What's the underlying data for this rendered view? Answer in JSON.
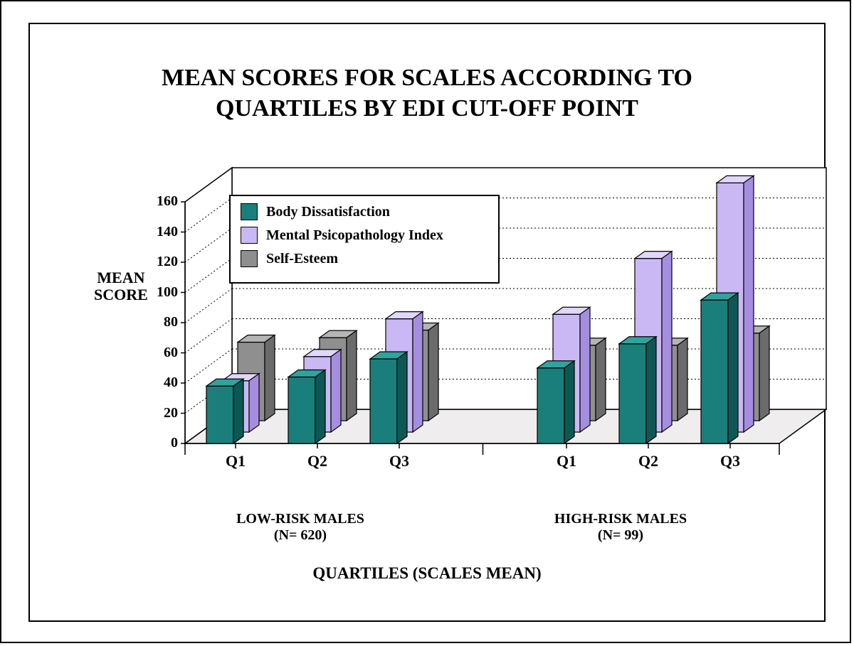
{
  "chart": {
    "type": "bar-3d-grouped",
    "title_line1": "MEAN SCORES FOR SCALES ACCORDING TO",
    "title_line2": "QUARTILES BY EDI CUT-OFF POINT",
    "title_fontsize": 34,
    "title_fontweight": "bold",
    "yaxis_title_line1": "MEAN",
    "yaxis_title_line2": "SCORE",
    "xaxis_title": "QUARTILES (SCALES MEAN)",
    "ylim": [
      0,
      160
    ],
    "ytick_step": 20,
    "yticks": [
      "0",
      "20",
      "40",
      "60",
      "80",
      "100",
      "120",
      "140",
      "160"
    ],
    "categories": [
      "Q1",
      "Q2",
      "Q3",
      "Q1",
      "Q2",
      "Q3"
    ],
    "groups": [
      {
        "label_line1": "LOW-RISK MALES",
        "label_line2": "(N= 620)",
        "cats": [
          "Q1",
          "Q2",
          "Q3"
        ]
      },
      {
        "label_line1": "HIGH-RISK MALES",
        "label_line2": "(N= 99)",
        "cats": [
          "Q1",
          "Q2",
          "Q3"
        ]
      }
    ],
    "series": [
      {
        "name": "Body Dissatisfaction",
        "color_front": "#1a7f7a",
        "color_top": "#2fa39d",
        "color_side": "#0d5854",
        "values": [
          38,
          44,
          56,
          50,
          66,
          95
        ]
      },
      {
        "name": "Mental Psicopathology Index",
        "color_front": "#c9b8f3",
        "color_top": "#e1d6fb",
        "color_side": "#a58ee0",
        "values": [
          34,
          50,
          75,
          78,
          115,
          165
        ]
      },
      {
        "name": "Self-Esteem",
        "color_front": "#8f8f8f",
        "color_top": "#b5b5b5",
        "color_side": "#6b6b6b",
        "values": [
          52,
          55,
          60,
          50,
          50,
          58
        ]
      }
    ],
    "legend": {
      "items": [
        "Body Dissatisfaction",
        " Mental Psicopathology Index",
        "Self-Esteem"
      ],
      "colors": [
        "#1a7f7a",
        "#c9b8f3",
        "#8f8f8f"
      ],
      "fontsize": 20
    },
    "floor_color": "#efeded",
    "backwall_color": "#ffffff",
    "outline_color": "#000000",
    "grid_color": "#000000",
    "grid_dash": "2,3",
    "bar_width_front": 38,
    "bar_depth_dx": 14,
    "bar_depth_dy": 10,
    "series_x_offset": 22,
    "series_y_offset": 16,
    "cluster_x_step": 115,
    "group_gap": 120,
    "plot": {
      "origin_x": 218,
      "base_y_front": 590,
      "wall_top_y": 218,
      "wall_height": 340,
      "wall_width": 835,
      "depth_dx": 66,
      "depth_dy": 48
    },
    "background_color": "#ffffff",
    "frame_color": "#000000",
    "font_family": "Times New Roman"
  }
}
